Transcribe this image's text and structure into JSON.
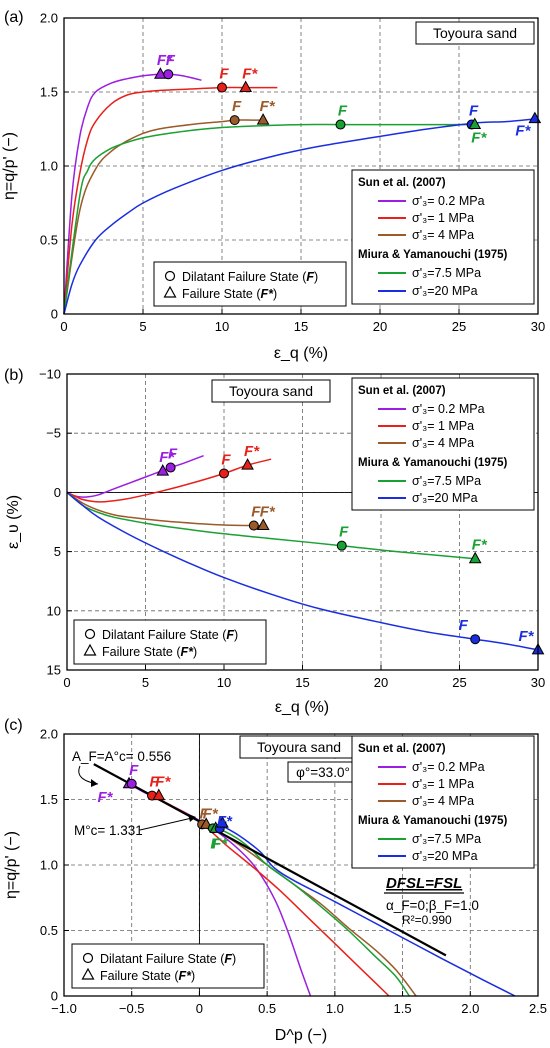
{
  "chart_data": [
    {
      "type": "line",
      "panel": "(a)",
      "tag": "Toyoura sand",
      "xlabel": "ε_q (%)",
      "ylabel": "η=q/p' (−)",
      "xlim": [
        0,
        30
      ],
      "ylim": [
        0,
        2.0
      ],
      "xticks": [
        "0",
        "5",
        "10",
        "15",
        "20",
        "25",
        "30"
      ],
      "yticks": [
        "0",
        "0.5",
        "1.0",
        "1.5",
        "2.0"
      ],
      "grid": true,
      "legend_placement": "right",
      "series": [
        {
          "name": "σ'₃= 0.2 MPa",
          "color": "#9a1fe0",
          "x": [
            0,
            0.5,
            1,
            1.5,
            2,
            3,
            4,
            5,
            6,
            6.6,
            7.5,
            8.7
          ],
          "y": [
            0,
            0.8,
            1.2,
            1.4,
            1.5,
            1.56,
            1.59,
            1.61,
            1.62,
            1.62,
            1.61,
            1.58
          ]
        },
        {
          "name": "σ'₃= 1 MPa",
          "color": "#e8201a",
          "x": [
            0,
            0.5,
            1,
            1.5,
            2,
            3,
            4,
            5,
            6,
            8,
            10,
            11.5,
            13.5
          ],
          "y": [
            0,
            0.6,
            0.95,
            1.18,
            1.3,
            1.42,
            1.48,
            1.5,
            1.51,
            1.52,
            1.53,
            1.53,
            1.53
          ]
        },
        {
          "name": "σ'₃= 4 MPa",
          "color": "#9a5a2a",
          "x": [
            0,
            1,
            2,
            3,
            4,
            5,
            6,
            8,
            10,
            10.8,
            11.9,
            12.5
          ],
          "y": [
            0,
            0.7,
            0.98,
            1.1,
            1.17,
            1.22,
            1.25,
            1.28,
            1.3,
            1.31,
            1.31,
            1.31
          ]
        },
        {
          "name": "σ'₃=7.5 MPa",
          "color": "#1aa033",
          "x": [
            0,
            1,
            1.5,
            2,
            3,
            4,
            5,
            6,
            8,
            10,
            12,
            15,
            17.5,
            20,
            23,
            26
          ],
          "y": [
            0,
            0.8,
            0.97,
            1.05,
            1.12,
            1.16,
            1.19,
            1.21,
            1.24,
            1.26,
            1.27,
            1.28,
            1.28,
            1.28,
            1.28,
            1.28
          ]
        },
        {
          "name": "σ'₃=20 MPa",
          "color": "#1a2ee0",
          "x": [
            0,
            0.5,
            1,
            2,
            3,
            4,
            5,
            7,
            10,
            13,
            16,
            20,
            23,
            26,
            28,
            30
          ],
          "y": [
            0,
            0.2,
            0.33,
            0.5,
            0.6,
            0.68,
            0.75,
            0.85,
            0.97,
            1.06,
            1.13,
            1.2,
            1.25,
            1.29,
            1.3,
            1.32
          ]
        }
      ],
      "markers": [
        {
          "label": "F*",
          "shape": "triangle",
          "series": "σ'₃= 0.2 MPa",
          "x": 6.1,
          "y": 1.62
        },
        {
          "label": "F",
          "shape": "circle",
          "series": "σ'₃= 0.2 MPa",
          "x": 6.6,
          "y": 1.62
        },
        {
          "label": "F",
          "shape": "circle",
          "series": "σ'₃= 1 MPa",
          "x": 10.0,
          "y": 1.53
        },
        {
          "label": "F*",
          "shape": "triangle",
          "series": "σ'₃= 1 MPa",
          "x": 11.5,
          "y": 1.53
        },
        {
          "label": "F",
          "shape": "circle",
          "series": "σ'₃= 4 MPa",
          "x": 10.8,
          "y": 1.31
        },
        {
          "label": "F*",
          "shape": "triangle",
          "series": "σ'₃= 4 MPa",
          "x": 12.6,
          "y": 1.31
        },
        {
          "label": "F",
          "shape": "circle",
          "series": "σ'₃=7.5 MPa",
          "x": 17.5,
          "y": 1.28
        },
        {
          "label": "F",
          "shape": "circle",
          "series": "σ'₃=20 MPa",
          "x": 25.8,
          "y": 1.28
        },
        {
          "label": "F*",
          "shape": "triangle",
          "series": "σ'₃=7.5 MPa",
          "x": 26.0,
          "y": 1.28
        },
        {
          "label": "F*",
          "shape": "triangle",
          "series": "σ'₃=20 MPa",
          "x": 29.8,
          "y": 1.32
        }
      ]
    },
    {
      "type": "line",
      "panel": "(b)",
      "tag": "Toyoura sand",
      "xlabel": "ε_q (%)",
      "ylabel": "ε_υ (%)",
      "xlim": [
        0,
        30
      ],
      "ylim": [
        -10,
        15
      ],
      "y_inverted": true,
      "xticks": [
        "0",
        "5",
        "10",
        "15",
        "20",
        "25",
        "30"
      ],
      "yticks": [
        "−10",
        "−5",
        "0",
        "5",
        "10",
        "15"
      ],
      "grid": true,
      "legend_placement": "top-right",
      "series": [
        {
          "name": "σ'₃= 0.2 MPa",
          "color": "#9a1fe0",
          "x": [
            0,
            0.5,
            1,
            1.5,
            2,
            3,
            4,
            5,
            6,
            6.6,
            7.5,
            8.7
          ],
          "y": [
            0,
            0.3,
            0.4,
            0.35,
            0.2,
            -0.3,
            -0.8,
            -1.3,
            -1.8,
            -2.1,
            -2.5,
            -3.1
          ]
        },
        {
          "name": "σ'₃= 1 MPa",
          "color": "#e8201a",
          "x": [
            0,
            0.5,
            1,
            2,
            3,
            4,
            6,
            8,
            10,
            11.5,
            13
          ],
          "y": [
            0,
            0.3,
            0.6,
            0.8,
            0.7,
            0.5,
            -0.1,
            -0.8,
            -1.6,
            -2.3,
            -2.8
          ]
        },
        {
          "name": "σ'₃= 4 MPa",
          "color": "#9a5a2a",
          "x": [
            0,
            1,
            2,
            3,
            4,
            6,
            8,
            10,
            11.9,
            12.5
          ],
          "y": [
            0,
            0.9,
            1.5,
            1.9,
            2.1,
            2.4,
            2.6,
            2.75,
            2.8,
            2.8
          ]
        },
        {
          "name": "σ'₃=7.5 MPa",
          "color": "#1aa033",
          "x": [
            0,
            1,
            2,
            3,
            5,
            7,
            10,
            13,
            17.5,
            21,
            26
          ],
          "y": [
            0,
            1.1,
            1.7,
            2.1,
            2.6,
            3.0,
            3.5,
            3.9,
            4.5,
            5.0,
            5.6
          ]
        },
        {
          "name": "σ'₃=20 MPa",
          "color": "#1a2ee0",
          "x": [
            0,
            1,
            2,
            4,
            6,
            8,
            10,
            13,
            16,
            20,
            23,
            26,
            28,
            30
          ],
          "y": [
            0,
            1.1,
            2.1,
            3.6,
            4.9,
            6.1,
            7.2,
            8.6,
            9.8,
            11.0,
            11.8,
            12.4,
            12.8,
            13.3
          ]
        }
      ],
      "markers": [
        {
          "label": "F*",
          "shape": "triangle",
          "series": "σ'₃= 0.2 MPa",
          "x": 6.1,
          "y": -1.8
        },
        {
          "label": "F",
          "shape": "circle",
          "series": "σ'₃= 0.2 MPa",
          "x": 6.6,
          "y": -2.1
        },
        {
          "label": "F",
          "shape": "circle",
          "series": "σ'₃= 1 MPa",
          "x": 10.0,
          "y": -1.6
        },
        {
          "label": "F*",
          "shape": "triangle",
          "series": "σ'₃= 1 MPa",
          "x": 11.5,
          "y": -2.3
        },
        {
          "label": "F",
          "shape": "circle",
          "series": "σ'₃= 4 MPa",
          "x": 11.9,
          "y": 2.8
        },
        {
          "label": "F*",
          "shape": "triangle",
          "series": "σ'₃= 4 MPa",
          "x": 12.5,
          "y": 2.8
        },
        {
          "label": "F",
          "shape": "circle",
          "series": "σ'₃=7.5 MPa",
          "x": 17.5,
          "y": 4.5
        },
        {
          "label": "F*",
          "shape": "triangle",
          "series": "σ'₃=7.5 MPa",
          "x": 26.0,
          "y": 5.6
        },
        {
          "label": "F",
          "shape": "circle",
          "series": "σ'₃=20 MPa",
          "x": 26.0,
          "y": 12.4
        },
        {
          "label": "F*",
          "shape": "triangle",
          "series": "σ'₃=20 MPa",
          "x": 30.0,
          "y": 13.3
        }
      ]
    },
    {
      "type": "line",
      "panel": "(c)",
      "tag": "Toyoura sand",
      "phi_label": "φ°=33.0°",
      "xlabel": "D^p (−)",
      "ylabel": "η=q/p' (−)",
      "xlim": [
        -1.0,
        2.5
      ],
      "ylim": [
        0,
        2.0
      ],
      "xticks": [
        "−1.0",
        "−0.5",
        "0",
        "0.5",
        "1.0",
        "1.5",
        "2.0",
        "2.5"
      ],
      "yticks": [
        "0",
        "0.5",
        "1.0",
        "1.5",
        "2.0"
      ],
      "grid": true,
      "legend_placement": "top-right",
      "annotations": {
        "af": "A_F=A°c= 0.556",
        "mc": "M°c= 1.331",
        "dfsl": "DFSL=FSL",
        "alpha": "α_F=0;β_F=1.0",
        "r2": "R²=0.990"
      },
      "series": [
        {
          "name": "σ'₃= 0.2 MPa",
          "color": "#9a1fe0",
          "x": [
            -0.52,
            -0.4,
            -0.2,
            0,
            0.2,
            0.4,
            0.55,
            0.65,
            0.75,
            0.82
          ],
          "y": [
            1.62,
            1.55,
            1.45,
            1.34,
            1.2,
            1.0,
            0.75,
            0.5,
            0.2,
            0
          ]
        },
        {
          "name": "σ'₃= 1 MPa",
          "color": "#e8201a",
          "x": [
            -0.35,
            -0.2,
            0,
            0.2,
            0.4,
            0.6,
            0.8,
            1.0,
            1.2,
            1.4
          ],
          "y": [
            1.53,
            1.45,
            1.33,
            1.15,
            0.98,
            0.8,
            0.6,
            0.4,
            0.2,
            0
          ]
        },
        {
          "name": "σ'₃= 4 MPa",
          "color": "#9a5a2a",
          "x": [
            0.02,
            0.1,
            0.3,
            0.5,
            0.7,
            0.9,
            1.1,
            1.3,
            1.45,
            1.6
          ],
          "y": [
            1.31,
            1.28,
            1.15,
            1.0,
            0.85,
            0.7,
            0.52,
            0.35,
            0.2,
            0
          ]
        },
        {
          "name": "σ'₃=7.5 MPa",
          "color": "#1aa033",
          "x": [
            0.1,
            0.2,
            0.35,
            0.5,
            0.7,
            0.9,
            1.1,
            1.3,
            1.45,
            1.55
          ],
          "y": [
            1.28,
            1.25,
            1.15,
            1.0,
            0.85,
            0.68,
            0.5,
            0.3,
            0.15,
            0
          ]
        },
        {
          "name": "σ'₃=20 MPa",
          "color": "#1a2ee0",
          "x": [
            0.15,
            0.3,
            0.45,
            0.55,
            0.7,
            1.0,
            1.4,
            1.8,
            2.1,
            2.33
          ],
          "y": [
            1.31,
            1.22,
            1.1,
            0.98,
            0.88,
            0.72,
            0.5,
            0.28,
            0.12,
            0
          ]
        },
        {
          "name": "DFSL=FSL",
          "color": "#000000",
          "x": [
            -0.78,
            1.82
          ],
          "y": [
            1.77,
            0.31
          ]
        }
      ],
      "markers": [
        {
          "label": "F*",
          "shape": "triangle",
          "series": "σ'₃= 0.2 MPa",
          "x": -0.52,
          "y": 1.62
        },
        {
          "label": "F",
          "shape": "circle",
          "series": "σ'₃= 0.2 MPa",
          "x": -0.5,
          "y": 1.62
        },
        {
          "label": "F",
          "shape": "circle",
          "series": "σ'₃= 1 MPa",
          "x": -0.35,
          "y": 1.53
        },
        {
          "label": "F*",
          "shape": "triangle",
          "series": "σ'₃= 1 MPa",
          "x": -0.3,
          "y": 1.53
        },
        {
          "label": "F",
          "shape": "circle",
          "series": "σ'₃= 4 MPa",
          "x": 0.02,
          "y": 1.31
        },
        {
          "label": "F*",
          "shape": "triangle",
          "series": "σ'₃= 4 MPa",
          "x": 0.05,
          "y": 1.31
        },
        {
          "label": "F",
          "shape": "circle",
          "series": "σ'₃=7.5 MPa",
          "x": 0.1,
          "y": 1.28
        },
        {
          "label": "F*",
          "shape": "triangle",
          "series": "σ'₃=7.5 MPa",
          "x": 0.12,
          "y": 1.28
        },
        {
          "label": "F",
          "shape": "circle",
          "series": "σ'₃=20 MPa",
          "x": 0.15,
          "y": 1.28
        },
        {
          "label": "F*",
          "shape": "triangle",
          "series": "σ'₃=20 MPa",
          "x": 0.17,
          "y": 1.32
        }
      ]
    }
  ],
  "legend": {
    "group1": "Sun et al. (2007)",
    "group2": "Miura & Yamanouchi (1975)",
    "entries": [
      "σ'₃= 0.2 MPa",
      "σ'₃= 1 MPa",
      "σ'₃= 4 MPa",
      "σ'₃=7.5 MPa",
      "σ'₃=20 MPa"
    ],
    "dilatant": "Dilatant Failure State (",
    "failure": "Failure State (",
    "f_sym": "F",
    "fstar_sym": "F*",
    "close": ")"
  }
}
